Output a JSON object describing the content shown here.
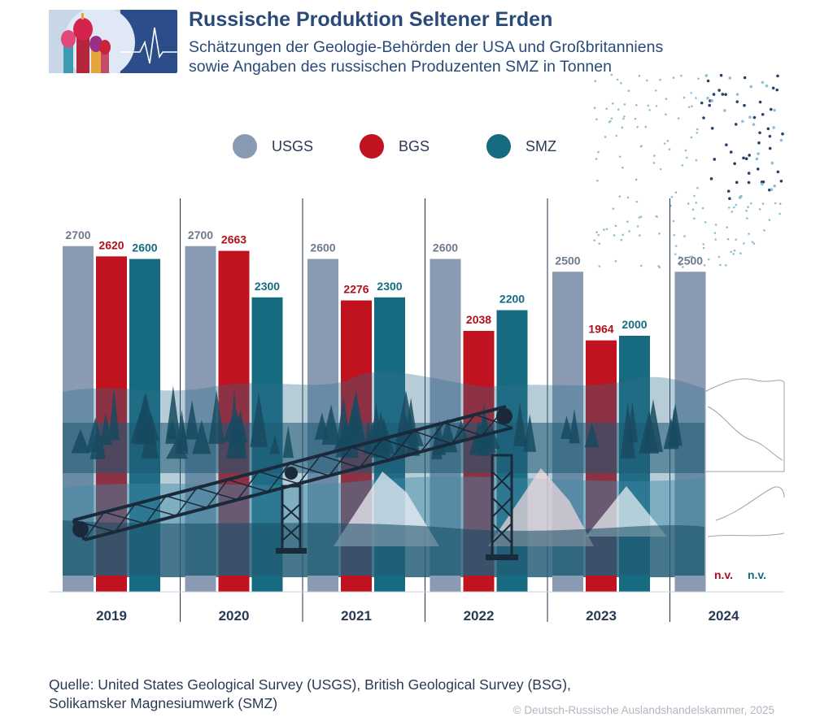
{
  "header": {
    "title": "Russische Produktion Seltener Erden",
    "subtitle_line1": "Schätzungen der Geologie-Behörden der USA und Großbritanniens",
    "subtitle_line2": "sowie Angaben des russischen Produzenten SMZ in Tonnen"
  },
  "legend": [
    {
      "label": "USGS",
      "color": "#8a9ab2"
    },
    {
      "label": "BGS",
      "color": "#c0121f"
    },
    {
      "label": "SMZ",
      "color": "#176b80"
    }
  ],
  "chart_data": {
    "type": "bar",
    "title": "Russische Produktion Seltener Erden",
    "ylabel": "Tonnen",
    "categories": [
      "2019",
      "2020",
      "2021",
      "2022",
      "2023",
      "2024"
    ],
    "series": [
      {
        "name": "USGS",
        "values": [
          2700,
          2700,
          2600,
          2600,
          2500,
          2500
        ]
      },
      {
        "name": "BGS",
        "values": [
          2620,
          2663,
          2276,
          2038,
          1964,
          null
        ]
      },
      {
        "name": "SMZ",
        "values": [
          2600,
          2300,
          2300,
          2200,
          2000,
          null
        ]
      }
    ],
    "missing_label": "n.v.",
    "ylim": [
      0,
      2800
    ],
    "colors": {
      "USGS": "#8a9ab2",
      "BGS": "#c0121f",
      "SMZ": "#176b80"
    },
    "label_colors": {
      "USGS": "#6e7a8c",
      "BGS": "#b0101c",
      "SMZ": "#176b80"
    }
  },
  "footer": {
    "source_line1": "Quelle: United States Geological Survey (USGS), British Geological Survey (BSG),",
    "source_line2": "Solikamsker Magnesiumwerk (SMZ)",
    "copyright": "© Deutsch-Russische Auslandshandelskammer, 2025"
  }
}
